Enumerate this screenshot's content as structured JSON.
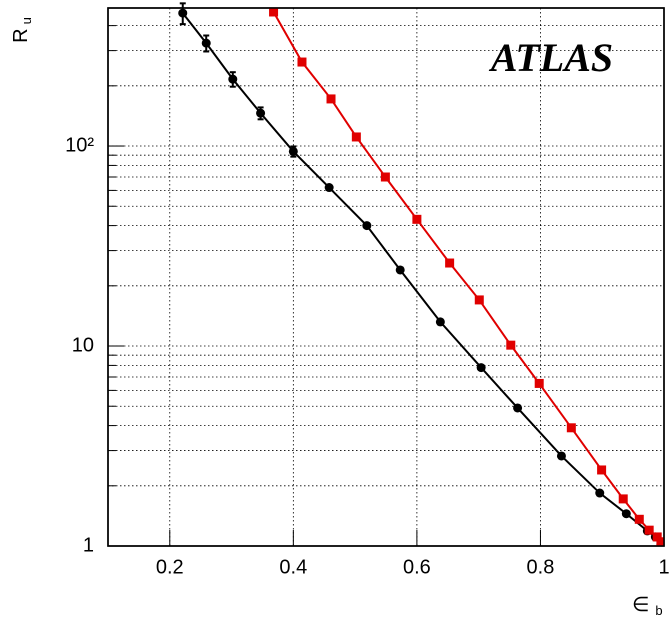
{
  "chart_data": {
    "type": "line",
    "annotation": "ATLAS",
    "x_label": {
      "main": "∈",
      "sub": "b"
    },
    "y_label": {
      "main": "R",
      "sub": "u"
    },
    "xlim": [
      0.1,
      1.0
    ],
    "xticks": [
      0.2,
      0.4,
      0.6,
      0.8,
      1
    ],
    "ylim": [
      1,
      490
    ],
    "log_y": true,
    "yticks": [
      1,
      10,
      {
        "value": 100,
        "label": "10²"
      }
    ],
    "yminorticks": [
      2,
      3,
      4,
      5,
      6,
      7,
      8,
      9,
      20,
      30,
      40,
      50,
      60,
      70,
      80,
      90,
      200,
      300,
      400
    ],
    "grid": true,
    "series": [
      {
        "color": "#000000",
        "marker": "circle",
        "x": [
          0.221,
          0.259,
          0.302,
          0.347,
          0.4,
          0.458,
          0.519,
          0.573,
          0.638,
          0.704,
          0.763,
          0.834,
          0.896,
          0.939,
          0.973,
          0.986,
          0.995
        ],
        "values": [
          462,
          327,
          216,
          146,
          94,
          62,
          40,
          24,
          13.2,
          7.8,
          4.9,
          2.82,
          1.84,
          1.45,
          1.19,
          1.11,
          1.02
        ],
        "errors": [
          55,
          30,
          18,
          10,
          5.5,
          null,
          null,
          null,
          null,
          null,
          null,
          null,
          null,
          null,
          null,
          null,
          null
        ]
      },
      {
        "color": "#e00000",
        "marker": "square",
        "x": [
          0.368,
          0.414,
          0.461,
          0.502,
          0.549,
          0.6,
          0.653,
          0.701,
          0.752,
          0.798,
          0.85,
          0.899,
          0.934,
          0.96,
          0.976,
          0.989,
          0.995
        ],
        "values": [
          468,
          263,
          172,
          111,
          70,
          43,
          26,
          17,
          10.1,
          6.5,
          3.9,
          2.4,
          1.72,
          1.36,
          1.2,
          1.11,
          1.05
        ]
      }
    ]
  }
}
